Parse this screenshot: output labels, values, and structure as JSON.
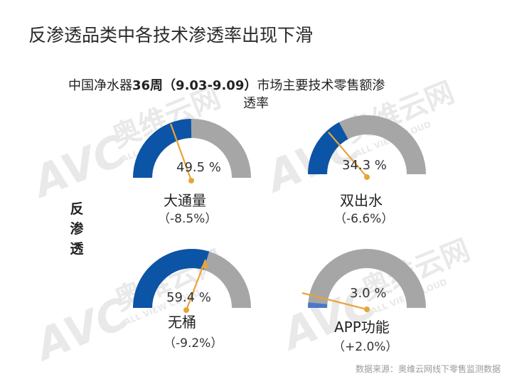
{
  "slide": {
    "title": "反渗透品类中各技术渗透率出现下滑",
    "side_label": "反渗透",
    "source": "数据来源：奥维云网线下零售监测数据"
  },
  "watermark": {
    "brand": "AVC",
    "cn": "奥维云网",
    "en": "ALL VIEW CLOUD"
  },
  "chart_data": {
    "type": "gauge",
    "title_line1_pre": "中国净水器",
    "title_line1_bold": "36周（9.03-9.09）",
    "title_line1_post": "市场主要技术零售额渗",
    "title_line2": "透率",
    "range": [
      0,
      100
    ],
    "colors": {
      "filled": "#0c54a6",
      "filled_app": "#4a78c8",
      "track": "#a6a6a6",
      "needle": "#e8a33a"
    },
    "gauges": [
      {
        "label": "大通量",
        "value": 49.5,
        "value_text": "49.5 %",
        "change": "（-8.5%）"
      },
      {
        "label": "双出水",
        "value": 34.3,
        "value_text": "34.3 %",
        "change": "（-6.6%）"
      },
      {
        "label": "无桶",
        "value": 59.4,
        "value_text": "59.4 %",
        "change": "（-9.2%）"
      },
      {
        "label": "APP功能",
        "value": 3.0,
        "value_text": "3.0 %",
        "change": "（+2.0%）"
      }
    ]
  }
}
